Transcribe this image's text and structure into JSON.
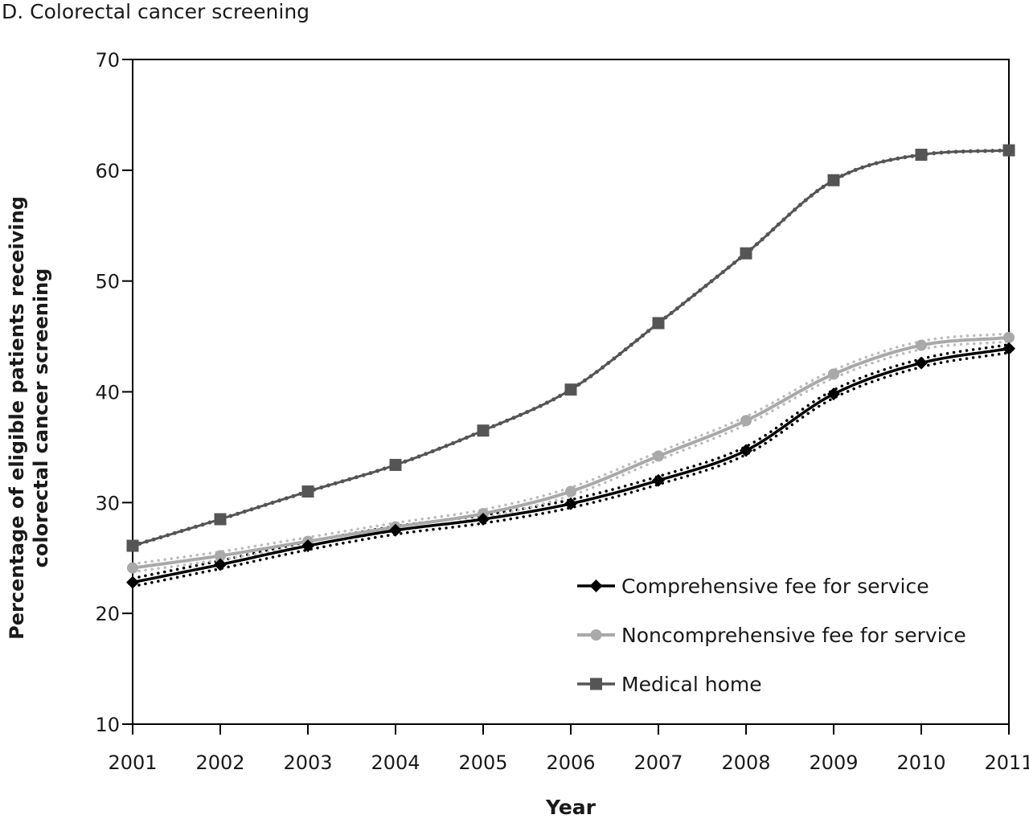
{
  "chart_data": {
    "type": "line",
    "title": "D. Colorectal cancer screening",
    "xlabel": "Year",
    "ylabel_lines": [
      "Percentage of eligible patients receiving",
      "colorectal cancer screening"
    ],
    "x": [
      "2001",
      "2002",
      "2003",
      "2004",
      "2005",
      "2006",
      "2007",
      "2008",
      "2009",
      "2010",
      "2011"
    ],
    "ylim": [
      10,
      70
    ],
    "yticks": [
      10,
      20,
      30,
      40,
      50,
      60,
      70
    ],
    "grid": false,
    "legend_position": "bottom-right",
    "series": [
      {
        "name": "Comprehensive fee for service",
        "marker": "diamond",
        "color": "#000000",
        "values": [
          22.8,
          24.4,
          26.1,
          27.5,
          28.5,
          29.9,
          32.0,
          34.7,
          39.8,
          42.6,
          43.9
        ]
      },
      {
        "name": "Noncomprehensive fee for service",
        "marker": "circle",
        "color": "#a9a9a9",
        "values": [
          24.1,
          25.2,
          26.5,
          27.8,
          29.0,
          31.0,
          34.2,
          37.4,
          41.6,
          44.2,
          44.9
        ]
      },
      {
        "name": "Medical home",
        "marker": "square",
        "color": "#555555",
        "values": [
          26.1,
          28.5,
          31.0,
          33.4,
          36.5,
          40.2,
          46.2,
          52.5,
          59.1,
          61.4,
          61.8
        ]
      }
    ]
  }
}
